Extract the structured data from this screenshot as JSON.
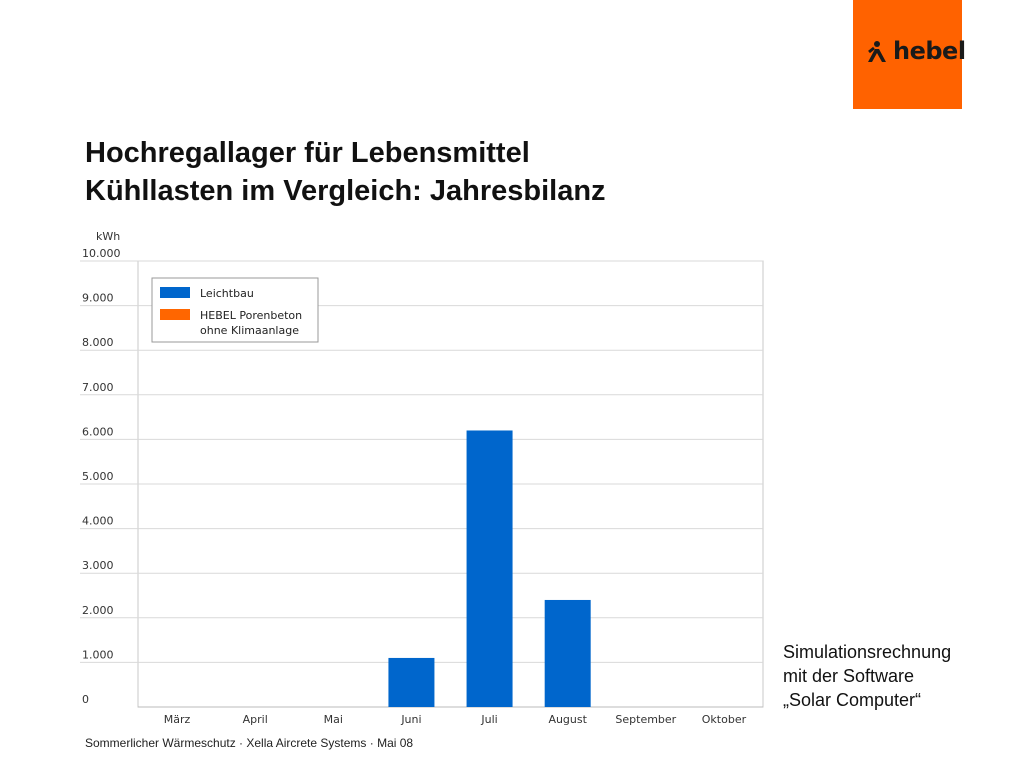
{
  "logo": {
    "text": "hebel",
    "icon": "hebel-mark-icon",
    "box_color": "#ff6200"
  },
  "title": {
    "line1": "Hochregallager für Lebensmittel",
    "line2": "Kühllasten im Vergleich: Jahresbilanz"
  },
  "note": {
    "line1": "Simulationsrechnung",
    "line2": "mit der Software",
    "line3": "„Solar Computer“"
  },
  "footer": "Sommerlicher Wärmeschutz · Xella Aircrete Systems · Mai 08",
  "chart_data": {
    "type": "bar",
    "ylabel": "kWh",
    "xlabel": "",
    "ylim": [
      0,
      10000
    ],
    "yticks": [
      0,
      1000,
      2000,
      3000,
      4000,
      5000,
      6000,
      7000,
      8000,
      9000,
      10000
    ],
    "ytick_labels": [
      "0",
      "1.000",
      "2.000",
      "3.000",
      "4.000",
      "5.000",
      "6.000",
      "7.000",
      "8.000",
      "9.000",
      "10.000"
    ],
    "categories": [
      "März",
      "April",
      "Mai",
      "Juni",
      "Juli",
      "August",
      "September",
      "Oktober"
    ],
    "grid": true,
    "legend_position": "top-left",
    "series": [
      {
        "name": "Leichtbau",
        "color": "#0066cc",
        "values": [
          0,
          0,
          0,
          1100,
          6200,
          2400,
          0,
          0
        ]
      },
      {
        "name": "HEBEL Porenbeton ohne Klimaanlage",
        "name_lines": [
          "HEBEL Porenbeton",
          "ohne Klimaanlage"
        ],
        "color": "#ff6600",
        "values": [
          0,
          0,
          0,
          0,
          0,
          0,
          0,
          0
        ]
      }
    ]
  }
}
